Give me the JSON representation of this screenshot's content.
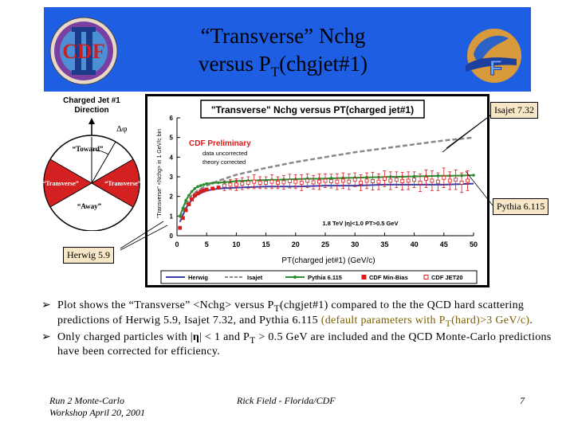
{
  "slide": {
    "title_line1": "“Transverse” Nchg",
    "title_line2_main": "versus P",
    "title_line2_sub": "T",
    "title_line2_end": "(chgjet#1)"
  },
  "diagram": {
    "direction_label_line1": "Charged Jet #1",
    "direction_label_line2": "Direction",
    "delta_phi": "Δφ",
    "toward": "“Toward”",
    "transverse_left": "“Transverse”",
    "transverse_right": "“Transverse”",
    "away": "“Away”"
  },
  "callouts": {
    "isajet": "Isajet 7.32",
    "pythia": "Pythia 6.115",
    "herwig": "Herwig 5.9"
  },
  "chart_data": {
    "type": "line",
    "title": "\"Transverse\" Nchg versus PT(charged jet#1)",
    "xlabel": "PT(charged jet#1)  (GeV/c)",
    "ylabel": "\"Transverse\" <Nchg> in 1 GeV/c bin",
    "xlim": [
      0,
      50
    ],
    "ylim": [
      0,
      6
    ],
    "xticks": [
      0,
      5,
      10,
      15,
      20,
      25,
      30,
      35,
      40,
      45,
      50
    ],
    "yticks": [
      0,
      1,
      2,
      3,
      4,
      5,
      6
    ],
    "annotation_preliminary": "CDF Preliminary",
    "annotation_note1": "data uncorrected",
    "annotation_note2": "theory corrected",
    "cut_label": "1.8 TeV |η|<1.0 PT>0.5 GeV",
    "legend": [
      "Herwig",
      "Isajet",
      "Pythia 6.115",
      "CDF Min-Bias",
      "CDF JET20"
    ],
    "series": [
      {
        "name": "Herwig",
        "color": "#3b3fa8",
        "style": "solid",
        "x": [
          0.5,
          1.5,
          2.5,
          3.5,
          5,
          7,
          10,
          15,
          20,
          25,
          30,
          35,
          40,
          45,
          50
        ],
        "y": [
          0.7,
          1.4,
          1.85,
          2.1,
          2.3,
          2.4,
          2.45,
          2.5,
          2.5,
          2.55,
          2.55,
          2.6,
          2.6,
          2.6,
          2.65
        ]
      },
      {
        "name": "Isajet",
        "color": "#888888",
        "style": "dashed",
        "x": [
          0.5,
          1.5,
          2.5,
          3.5,
          5,
          7,
          10,
          15,
          20,
          25,
          30,
          35,
          40,
          45,
          50
        ],
        "y": [
          0.9,
          1.6,
          2.05,
          2.3,
          2.55,
          2.8,
          3.1,
          3.45,
          3.75,
          4.0,
          4.25,
          4.45,
          4.65,
          4.85,
          5.0
        ]
      },
      {
        "name": "Pythia 6.115",
        "color": "#2e8b2e",
        "style": "solid",
        "x": [
          0.5,
          1,
          1.5,
          2,
          2.5,
          3,
          3.5,
          4,
          4.5,
          5,
          6,
          7,
          8,
          9,
          10,
          12,
          14,
          16,
          18,
          20,
          22,
          24,
          26,
          28,
          30,
          32,
          34,
          36,
          38,
          40,
          42,
          44,
          46,
          48,
          50
        ],
        "y": [
          1.0,
          1.4,
          1.8,
          2.05,
          2.25,
          2.4,
          2.5,
          2.55,
          2.6,
          2.65,
          2.68,
          2.7,
          2.72,
          2.75,
          2.78,
          2.8,
          2.82,
          2.84,
          2.86,
          2.88,
          2.9,
          2.9,
          2.92,
          2.94,
          2.95,
          2.97,
          2.98,
          3.0,
          3.0,
          3.02,
          3.03,
          3.05,
          3.05,
          3.06,
          3.08
        ]
      },
      {
        "name": "CDF Min-Bias",
        "color": "#d61d1d",
        "marker": "square",
        "x": [
          0.5,
          1,
          1.5,
          2,
          2.5,
          3,
          3.5,
          4,
          4.5,
          5,
          6,
          7
        ],
        "y": [
          0.4,
          0.9,
          1.3,
          1.6,
          1.85,
          2.05,
          2.15,
          2.25,
          2.3,
          2.35,
          2.4,
          2.45
        ]
      },
      {
        "name": "CDF JET20",
        "color": "#d61d1d",
        "marker": "square-open",
        "x": [
          8,
          9,
          10,
          11,
          12,
          13,
          14,
          15,
          16,
          17,
          18,
          19,
          20,
          21,
          22,
          23,
          24,
          25,
          26,
          27,
          28,
          29,
          30,
          31,
          32,
          33,
          34,
          35,
          36,
          37,
          38,
          39,
          40,
          41,
          42,
          43,
          44,
          45,
          46,
          47,
          48,
          49
        ],
        "y": [
          2.55,
          2.6,
          2.6,
          2.65,
          2.7,
          2.75,
          2.7,
          2.7,
          2.75,
          2.7,
          2.72,
          2.78,
          2.75,
          2.7,
          2.8,
          2.72,
          2.75,
          2.8,
          2.78,
          2.75,
          2.8,
          2.75,
          2.85,
          2.7,
          2.8,
          2.78,
          2.75,
          2.9,
          2.8,
          2.85,
          2.78,
          2.8,
          2.85,
          2.7,
          2.9,
          2.8,
          2.75,
          2.95,
          2.8,
          2.85,
          2.7,
          2.8
        ],
        "err": [
          0.25,
          0.25,
          0.3,
          0.3,
          0.3,
          0.35,
          0.3,
          0.3,
          0.35,
          0.3,
          0.35,
          0.35,
          0.35,
          0.4,
          0.35,
          0.35,
          0.4,
          0.35,
          0.35,
          0.4,
          0.4,
          0.4,
          0.35,
          0.4,
          0.4,
          0.45,
          0.4,
          0.4,
          0.45,
          0.4,
          0.45,
          0.45,
          0.4,
          0.45,
          0.45,
          0.5,
          0.45,
          0.5,
          0.45,
          0.5,
          0.5,
          0.5
        ]
      }
    ]
  },
  "bullets": [
    {
      "p1": "Plot shows the “Transverse” <Nchg> versus P",
      "sub": "T",
      "p2": "(chgjet#1) compared to the the QCD hard scattering predictions of Herwig 5.9, Isajet 7.32, and Pythia 6.115 ",
      "hl1": "(default parameters with P",
      "hlsub": "T",
      "hl2": "(hard)>3 GeV/c)",
      "end": "."
    },
    {
      "p1": "Only charged particles with |",
      "eta": "η",
      "p2": "| < 1 and P",
      "sub": "T",
      "p3": " > 0.5 GeV are included and the QCD Monte-Carlo predictions have been corrected for efficiency."
    }
  ],
  "footer": {
    "left_line1": "Run 2 Monte-Carlo",
    "left_line2": "Workshop April 20, 2001",
    "middle": "Rick Field - Florida/CDF",
    "page": "7"
  }
}
